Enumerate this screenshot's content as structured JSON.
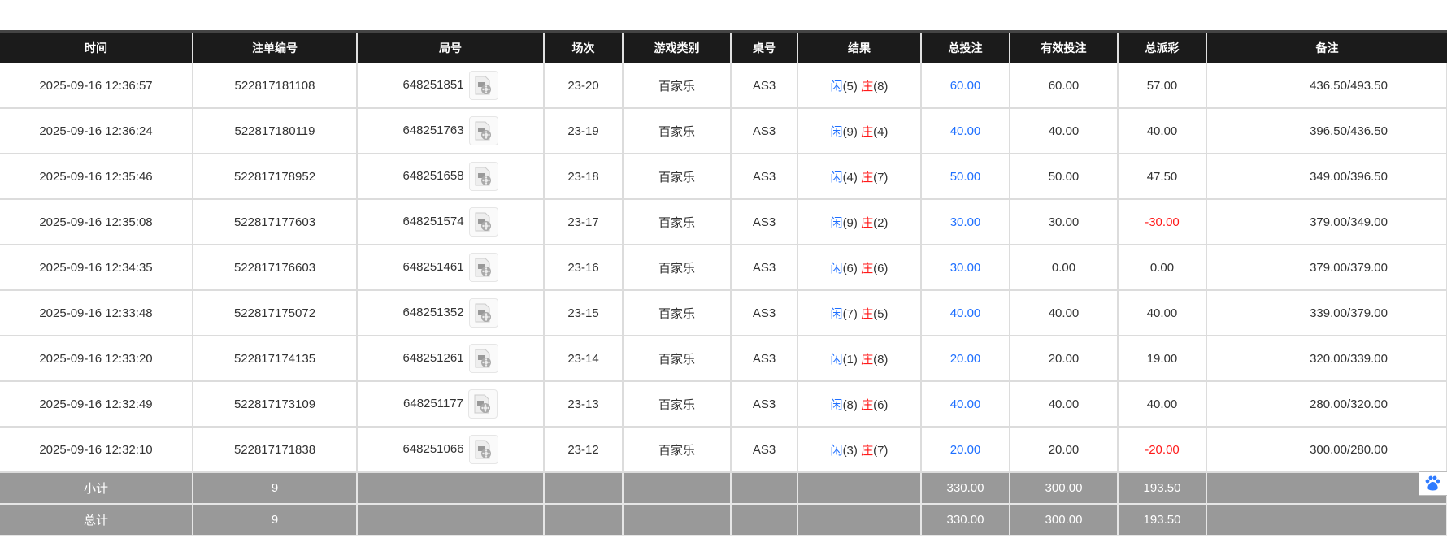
{
  "headers": [
    "时间",
    "注单编号",
    "局号",
    "场次",
    "游戏类别",
    "桌号",
    "结果",
    "总投注",
    "有效投注",
    "总派彩",
    "备注"
  ],
  "rows": [
    {
      "time": "2025-09-16 12:36:57",
      "bet_id": "522817181108",
      "round": "648251851",
      "session": "23-20",
      "game": "百家乐",
      "table": "AS3",
      "player": "闲",
      "player_score": "(5)",
      "banker": "庄",
      "banker_score": "(8)",
      "total_bet": "60.00",
      "valid_bet": "60.00",
      "payout": "57.00",
      "payout_negative": false,
      "remark": "436.50/493.50"
    },
    {
      "time": "2025-09-16 12:36:24",
      "bet_id": "522817180119",
      "round": "648251763",
      "session": "23-19",
      "game": "百家乐",
      "table": "AS3",
      "player": "闲",
      "player_score": "(9)",
      "banker": "庄",
      "banker_score": "(4)",
      "total_bet": "40.00",
      "valid_bet": "40.00",
      "payout": "40.00",
      "payout_negative": false,
      "remark": "396.50/436.50"
    },
    {
      "time": "2025-09-16 12:35:46",
      "bet_id": "522817178952",
      "round": "648251658",
      "session": "23-18",
      "game": "百家乐",
      "table": "AS3",
      "player": "闲",
      "player_score": "(4)",
      "banker": "庄",
      "banker_score": "(7)",
      "total_bet": "50.00",
      "valid_bet": "50.00",
      "payout": "47.50",
      "payout_negative": false,
      "remark": "349.00/396.50"
    },
    {
      "time": "2025-09-16 12:35:08",
      "bet_id": "522817177603",
      "round": "648251574",
      "session": "23-17",
      "game": "百家乐",
      "table": "AS3",
      "player": "闲",
      "player_score": "(9)",
      "banker": "庄",
      "banker_score": "(2)",
      "total_bet": "30.00",
      "valid_bet": "30.00",
      "payout": "-30.00",
      "payout_negative": true,
      "remark": "379.00/349.00"
    },
    {
      "time": "2025-09-16 12:34:35",
      "bet_id": "522817176603",
      "round": "648251461",
      "session": "23-16",
      "game": "百家乐",
      "table": "AS3",
      "player": "闲",
      "player_score": "(6)",
      "banker": "庄",
      "banker_score": "(6)",
      "total_bet": "30.00",
      "valid_bet": "0.00",
      "payout": "0.00",
      "payout_negative": false,
      "remark": "379.00/379.00"
    },
    {
      "time": "2025-09-16 12:33:48",
      "bet_id": "522817175072",
      "round": "648251352",
      "session": "23-15",
      "game": "百家乐",
      "table": "AS3",
      "player": "闲",
      "player_score": "(7)",
      "banker": "庄",
      "banker_score": "(5)",
      "total_bet": "40.00",
      "valid_bet": "40.00",
      "payout": "40.00",
      "payout_negative": false,
      "remark": "339.00/379.00"
    },
    {
      "time": "2025-09-16 12:33:20",
      "bet_id": "522817174135",
      "round": "648251261",
      "session": "23-14",
      "game": "百家乐",
      "table": "AS3",
      "player": "闲",
      "player_score": "(1)",
      "banker": "庄",
      "banker_score": "(8)",
      "total_bet": "20.00",
      "valid_bet": "20.00",
      "payout": "19.00",
      "payout_negative": false,
      "remark": "320.00/339.00"
    },
    {
      "time": "2025-09-16 12:32:49",
      "bet_id": "522817173109",
      "round": "648251177",
      "session": "23-13",
      "game": "百家乐",
      "table": "AS3",
      "player": "闲",
      "player_score": "(8)",
      "banker": "庄",
      "banker_score": "(6)",
      "total_bet": "40.00",
      "valid_bet": "40.00",
      "payout": "40.00",
      "payout_negative": false,
      "remark": "280.00/320.00"
    },
    {
      "time": "2025-09-16 12:32:10",
      "bet_id": "522817171838",
      "round": "648251066",
      "session": "23-12",
      "game": "百家乐",
      "table": "AS3",
      "player": "闲",
      "player_score": "(3)",
      "banker": "庄",
      "banker_score": "(7)",
      "total_bet": "20.00",
      "valid_bet": "20.00",
      "payout": "-20.00",
      "payout_negative": true,
      "remark": "300.00/280.00"
    }
  ],
  "summary": [
    {
      "label": "小计",
      "count": "9",
      "total_bet": "330.00",
      "valid_bet": "300.00",
      "payout": "193.50"
    },
    {
      "label": "总计",
      "count": "9",
      "total_bet": "330.00",
      "valid_bet": "300.00",
      "payout": "193.50"
    }
  ],
  "colors": {
    "player": "#1e6fff",
    "banker": "#ff1a1a",
    "header_bg": "#1b1b1b",
    "summary_bg": "#999999"
  },
  "icons": {
    "replay": "video-replay-icon",
    "floating": "baidu-paw-icon"
  }
}
